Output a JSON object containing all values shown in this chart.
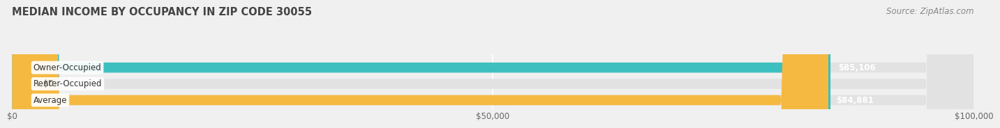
{
  "title": "MEDIAN INCOME BY OCCUPANCY IN ZIP CODE 30055",
  "source": "Source: ZipAtlas.com",
  "categories": [
    "Owner-Occupied",
    "Renter-Occupied",
    "Average"
  ],
  "values": [
    85106,
    0,
    84881
  ],
  "bar_colors": [
    "#3dbfbf",
    "#c9a8d4",
    "#f5b942"
  ],
  "bar_labels": [
    "$85,106",
    "$0",
    "$84,881"
  ],
  "xlim": [
    0,
    100000
  ],
  "xticks": [
    0,
    50000,
    100000
  ],
  "xtick_labels": [
    "$0",
    "$50,000",
    "$100,000"
  ],
  "background_color": "#f0f0f0",
  "bar_bg_color": "#e2e2e2",
  "title_fontsize": 10.5,
  "source_fontsize": 8.5,
  "label_fontsize": 8.5,
  "tick_fontsize": 8.5
}
